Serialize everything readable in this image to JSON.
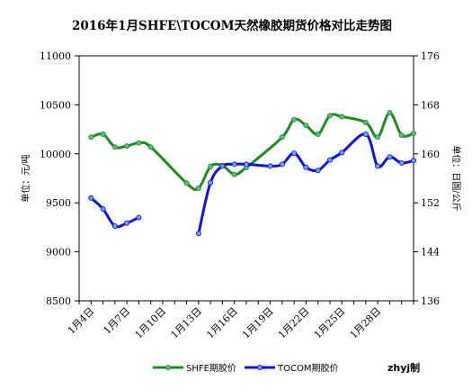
{
  "chart_data": {
    "type": "line",
    "title": "2016年1月SHFE\\TOCOM天然橡胶期货价格对比走势图",
    "ylabel_left": "单位：元/吨",
    "ylabel_right": "单位：日圆/公斤",
    "credit": "zhyj制",
    "left_axis": {
      "min": 8500,
      "max": 11000,
      "ticks": [
        8500,
        9000,
        9500,
        10000,
        10500,
        11000
      ]
    },
    "right_axis": {
      "min": 136,
      "max": 176,
      "ticks": [
        136,
        144,
        152,
        160,
        168,
        176
      ]
    },
    "x_range": [
      3,
      31
    ],
    "x_ticks": [
      {
        "x": 4,
        "label": "1月4日"
      },
      {
        "x": 7,
        "label": "1月7日"
      },
      {
        "x": 10,
        "label": "1月10日"
      },
      {
        "x": 13,
        "label": "1月13日"
      },
      {
        "x": 16,
        "label": "1月16日"
      },
      {
        "x": 19,
        "label": "1月19日"
      },
      {
        "x": 22,
        "label": "1月22日"
      },
      {
        "x": 25,
        "label": "1月25日"
      },
      {
        "x": 28,
        "label": "1月28日"
      }
    ],
    "grid": false,
    "legend_position": "bottom",
    "series": [
      {
        "name": "SHFE期胶价",
        "axis": "left",
        "color": "#1e8c1e",
        "marker_color": "#5cb89a",
        "points": [
          [
            4,
            10170
          ],
          [
            5,
            10200
          ],
          [
            6,
            10070
          ],
          [
            7,
            10080
          ],
          [
            8,
            10110
          ],
          [
            9,
            10070
          ],
          [
            12,
            9700
          ],
          [
            13,
            9650
          ],
          [
            14,
            9870
          ],
          [
            15,
            9880
          ],
          [
            16,
            9790
          ],
          [
            17,
            9860
          ],
          [
            20,
            10170
          ],
          [
            21,
            10350
          ],
          [
            22,
            10290
          ],
          [
            23,
            10200
          ],
          [
            24,
            10390
          ],
          [
            25,
            10380
          ],
          [
            27,
            10320
          ],
          [
            28,
            10170
          ],
          [
            29,
            10420
          ],
          [
            30,
            10190
          ],
          [
            31,
            10210
          ]
        ]
      },
      {
        "name": "TOCOM期胶价",
        "axis": "right",
        "color": "#1010e0",
        "marker_color": "#6aa6e8",
        "segments": [
          [
            [
              4,
              152.8
            ],
            [
              5,
              151.0
            ],
            [
              6,
              148.2
            ],
            [
              7,
              148.7
            ],
            [
              8,
              149.6
            ]
          ],
          [
            [
              13,
              147.0
            ],
            [
              14,
              155.3
            ],
            [
              15,
              158.0
            ],
            [
              16,
              158.3
            ],
            [
              17,
              158.3
            ],
            [
              19,
              158.0
            ],
            [
              20,
              158.3
            ],
            [
              21,
              160.1
            ],
            [
              22,
              157.8
            ],
            [
              23,
              157.3
            ],
            [
              24,
              159.0
            ],
            [
              25,
              160.2
            ],
            [
              27,
              163.2
            ],
            [
              28,
              158.0
            ],
            [
              29,
              159.5
            ],
            [
              30,
              158.5
            ],
            [
              31,
              158.9
            ]
          ]
        ]
      }
    ]
  }
}
